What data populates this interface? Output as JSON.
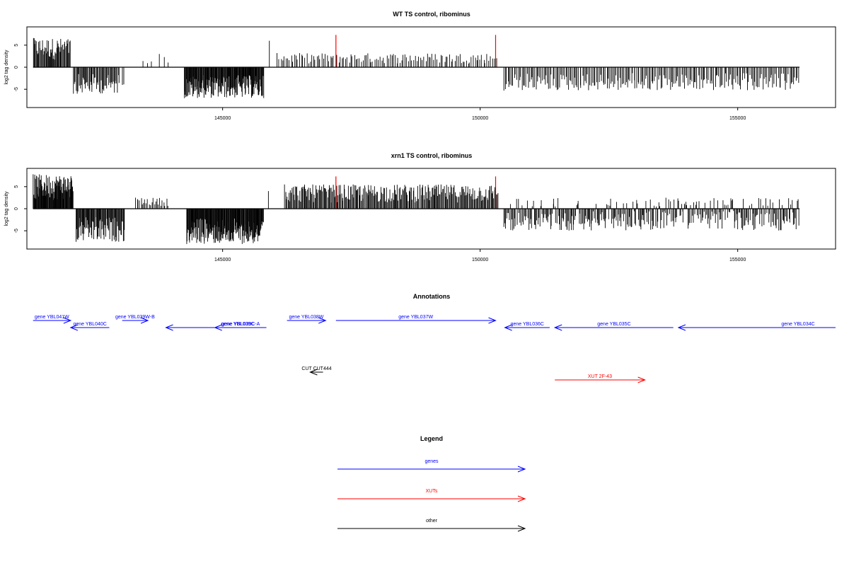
{
  "chart_data": [
    {
      "type": "bar",
      "title": "WT TS control, ribominus",
      "ylabel": "log2 tag density",
      "xlim": [
        141200,
        156900
      ],
      "ylim": [
        -8.5,
        8.5
      ],
      "x_ticks": [
        145000,
        150000,
        155000
      ],
      "y_ticks": [
        -5,
        0,
        5
      ],
      "grid": false,
      "series": [
        {
          "color": "#000000",
          "segments": [
            {
              "range": [
                141320,
                142050
              ],
              "min": 0,
              "max": 6.6,
              "density": 55
            },
            {
              "range": [
                142100,
                143000
              ],
              "min": -6.0,
              "max": 0,
              "density": 55
            },
            {
              "range": [
                143000,
                143050
              ],
              "min": 0,
              "max": 0,
              "density": 0
            },
            {
              "range": [
                143050,
                143100
              ],
              "min": -4.0,
              "max": 0,
              "density": 2
            },
            {
              "range": [
                143400,
                143650
              ],
              "min": 0,
              "max": 1.4,
              "density": 3
            },
            {
              "range": [
                143750,
                143980
              ],
              "min": 0,
              "max": 3.0,
              "density": 3
            },
            {
              "range": [
                144250,
                145800
              ],
              "min": -7.0,
              "max": 0,
              "density": 160
            },
            {
              "range": [
                145880,
                145920
              ],
              "min": 0,
              "max": 6.0,
              "density": 1
            },
            {
              "range": [
                146050,
                150350
              ],
              "min": 0,
              "max": 3.2,
              "density": 130
            },
            {
              "range": [
                150450,
                156200
              ],
              "min": -5.3,
              "max": 0,
              "density": 230
            }
          ]
        },
        {
          "color": "#ff0000",
          "name_hidden": true,
          "x": [
            147200,
            150300
          ],
          "values": [
            7.8,
            7.8
          ]
        }
      ]
    },
    {
      "type": "bar",
      "title": "xrn1 TS control, ribominus",
      "ylabel": "log2 tag density",
      "xlim": [
        141200,
        156900
      ],
      "ylim": [
        -8.5,
        8.5
      ],
      "x_ticks": [
        145000,
        150000,
        155000
      ],
      "y_ticks": [
        -5,
        0,
        5
      ],
      "grid": false,
      "series": [
        {
          "color": "#000000",
          "segments": [
            {
              "range": [
                141320,
                142100
              ],
              "min": 0,
              "max": 7.8,
              "density": 90
            },
            {
              "range": [
                142150,
                143100
              ],
              "min": -7.5,
              "max": 0,
              "density": 80
            },
            {
              "range": [
                143300,
                143950
              ],
              "min": 0,
              "max": 2.5,
              "density": 25
            },
            {
              "range": [
                144300,
                145800
              ],
              "min": -8.0,
              "max": 0,
              "density": 170
            },
            {
              "range": [
                145880,
                145920
              ],
              "min": 0,
              "max": 4.0,
              "density": 1
            },
            {
              "range": [
                146200,
                150350
              ],
              "min": 0,
              "max": 5.5,
              "density": 260
            },
            {
              "range": [
                150450,
                156200
              ],
              "min": -5.0,
              "max": 2.5,
              "density": 330
            }
          ]
        },
        {
          "color": "#ff0000",
          "name_hidden": true,
          "x": [
            147200,
            150300
          ],
          "values": [
            7.8,
            7.8
          ]
        }
      ]
    }
  ],
  "annotations": {
    "title": "Annotations",
    "genes_color": "#0000ff",
    "xut_color": "#ff0000",
    "other_color": "#000000",
    "tracks": [
      {
        "label": "gene YBL041W",
        "start": 141320,
        "end": 142050,
        "strand": "+",
        "kind": "gene",
        "row": 0
      },
      {
        "label": "gene YBL040C",
        "start": 142050,
        "end": 142800,
        "strand": "-",
        "kind": "gene",
        "row": 1
      },
      {
        "label": "gene YBL039W-B",
        "start": 143050,
        "end": 143550,
        "strand": "+",
        "kind": "gene",
        "row": 0
      },
      {
        "label": "gene YBL039C",
        "start": 143900,
        "end": 145850,
        "strand": "-",
        "kind": "gene",
        "row": 1
      },
      {
        "label": "gene YBL039C-A",
        "start": 144850,
        "end": 145850,
        "strand": "-",
        "kind": "gene",
        "row": 1
      },
      {
        "label": "gene YBL038W",
        "start": 146250,
        "end": 147000,
        "strand": "+",
        "kind": "gene",
        "row": 0
      },
      {
        "label": "gene YBL037W",
        "start": 147200,
        "end": 150300,
        "strand": "+",
        "kind": "gene",
        "row": 0
      },
      {
        "label": "gene YBL036C",
        "start": 150480,
        "end": 151350,
        "strand": "-",
        "kind": "gene",
        "row": 1
      },
      {
        "label": "gene YBL035C",
        "start": 151450,
        "end": 153750,
        "strand": "-",
        "kind": "gene",
        "row": 1
      },
      {
        "label": "gene YBL034C",
        "start": 153850,
        "end": 156900,
        "strand": "-",
        "kind": "gene",
        "row": 1
      },
      {
        "label": "CUT CUT444",
        "start": 146700,
        "end": 146950,
        "strand": "-",
        "kind": "other",
        "row": 2
      },
      {
        "label": "XUT 2F-43",
        "start": 151450,
        "end": 153200,
        "strand": "+",
        "kind": "xut",
        "row": 3
      }
    ]
  },
  "legend": {
    "title": "Legend",
    "items": [
      {
        "label": "genes",
        "color": "#0000ff"
      },
      {
        "label": "XUTs",
        "color": "#ff0000"
      },
      {
        "label": "other",
        "color": "#000000"
      }
    ]
  }
}
